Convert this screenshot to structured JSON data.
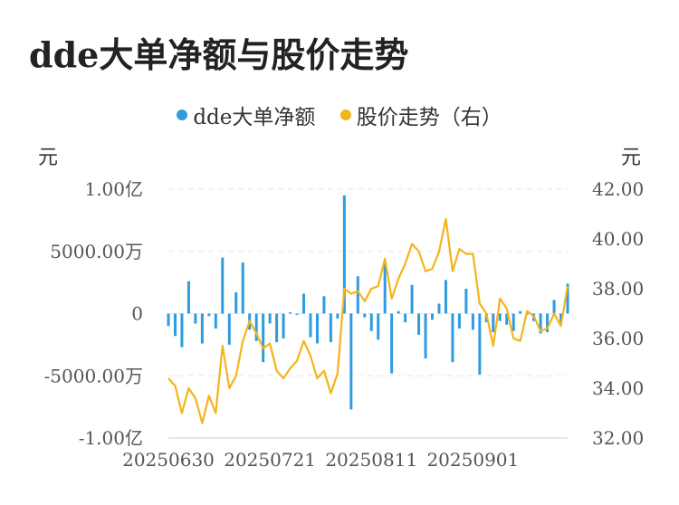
{
  "chart_data": {
    "type": "bar+line",
    "title": "dde大单净额与股价走势",
    "legend": [
      {
        "name": "dde大单净额",
        "color": "#2f9be0"
      },
      {
        "name": "股价走势（右）",
        "color": "#f4b41a"
      }
    ],
    "left_unit": "元",
    "right_unit": "元",
    "left_axis": {
      "ticks": [
        "1.00亿",
        "5000.00万",
        "0",
        "-5000.00万",
        "-1.00亿"
      ],
      "range": [
        -10000,
        10000
      ]
    },
    "right_axis": {
      "ticks": [
        "42.00",
        "40.00",
        "38.00",
        "36.00",
        "34.00",
        "32.00"
      ],
      "range": [
        32,
        42
      ]
    },
    "x_tick_labels": [
      "20250630",
      "20250721",
      "20250811",
      "20250901"
    ],
    "x_tick_indices": [
      0,
      15,
      30,
      45
    ],
    "series": [
      {
        "name": "dde大单净额",
        "unit": "万元",
        "values": [
          -1000,
          -1800,
          -2700,
          2600,
          -800,
          -2400,
          -200,
          -1200,
          4500,
          -2500,
          1700,
          4100,
          -1300,
          -2200,
          -3900,
          -800,
          -2300,
          -2000,
          100,
          -100,
          1600,
          -1900,
          -2400,
          1400,
          -2300,
          -400,
          9500,
          -7700,
          3000,
          -300,
          -1400,
          -2100,
          4200,
          -4800,
          200,
          -700,
          2300,
          -1700,
          -3600,
          -500,
          800,
          2700,
          -3900,
          -1200,
          2000,
          -1300,
          -4900,
          -700,
          -1500,
          -600,
          -900,
          -1400,
          200,
          -100,
          -600,
          -1600,
          -1500,
          1100,
          -700,
          2400
        ]
      },
      {
        "name": "股价走势（右）",
        "values": [
          34.4,
          34.1,
          33.0,
          34.0,
          33.6,
          32.6,
          33.7,
          33.0,
          35.7,
          34.0,
          34.5,
          35.9,
          36.7,
          36.2,
          35.6,
          35.8,
          34.7,
          34.4,
          34.8,
          35.1,
          35.9,
          35.3,
          34.4,
          34.7,
          33.8,
          34.6,
          38.0,
          37.8,
          37.9,
          37.5,
          38.0,
          38.1,
          39.2,
          37.6,
          38.4,
          39.0,
          39.8,
          39.5,
          38.7,
          38.8,
          39.5,
          40.8,
          38.7,
          39.6,
          39.4,
          39.4,
          37.4,
          37.0,
          35.7,
          37.6,
          37.2,
          36.0,
          35.9,
          37.1,
          36.9,
          36.3,
          36.4,
          37.0,
          36.5,
          38.1
        ]
      }
    ]
  }
}
